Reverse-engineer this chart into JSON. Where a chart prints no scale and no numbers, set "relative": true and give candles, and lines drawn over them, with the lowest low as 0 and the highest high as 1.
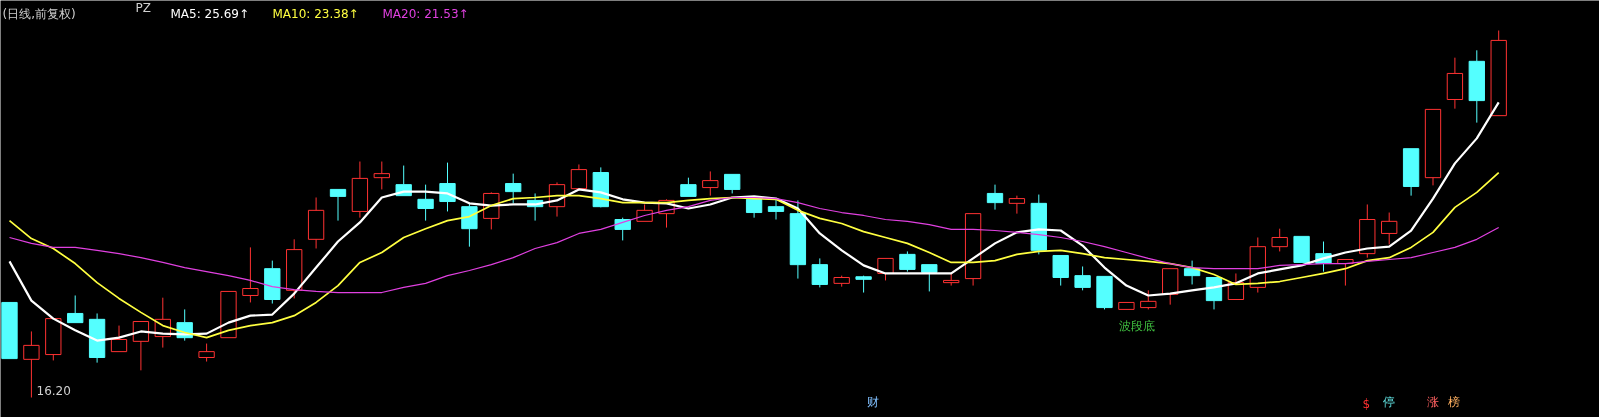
{
  "chart_data": {
    "type": "candlestick",
    "title": "(日线,前复权)",
    "relative": true,
    "annotations": [
      "PZ",
      "16.20",
      "波段底",
      "财",
      "$",
      "停",
      "涨",
      "榜"
    ],
    "categories": [
      null,
      null,
      null,
      null,
      null,
      null,
      null,
      null,
      null,
      null,
      null,
      null,
      null,
      null,
      null,
      null,
      null,
      null,
      null,
      null,
      null,
      null,
      null,
      null,
      null,
      null,
      null,
      null,
      null,
      null,
      null,
      null,
      null,
      null,
      null,
      null,
      null,
      null,
      null,
      null,
      null,
      null,
      null,
      null,
      null,
      null,
      null,
      null,
      null,
      null,
      null,
      null,
      null,
      null,
      null,
      null,
      null,
      null,
      null,
      null,
      null,
      null,
      null,
      null,
      null,
      null,
      null,
      null,
      null
    ],
    "ohlc": [
      [
        0.259,
        0.259,
        0.106,
        0.106
      ],
      [
        0.104,
        0.18,
        0,
        0.142
      ],
      [
        0.117,
        0.215,
        0.101,
        0.215
      ],
      [
        0.229,
        0.278,
        0.204,
        0.204
      ],
      [
        0.213,
        0.229,
        0.095,
        0.109
      ],
      [
        0.125,
        0.196,
        0.125,
        0.158
      ],
      [
        0.153,
        0.207,
        0.074,
        0.207
      ],
      [
        0.166,
        0.272,
        0.136,
        0.213
      ],
      [
        0.204,
        0.24,
        0.155,
        0.163
      ],
      [
        0.109,
        0.147,
        0.098,
        0.125
      ],
      [
        0.163,
        0.289,
        0.163,
        0.289
      ],
      [
        0.278,
        0.409,
        0.259,
        0.297
      ],
      [
        0.351,
        0.373,
        0.256,
        0.267
      ],
      [
        0.292,
        0.431,
        0.27,
        0.403
      ],
      [
        0.431,
        0.545,
        0.406,
        0.51
      ],
      [
        0.567,
        0.567,
        0.482,
        0.548
      ],
      [
        0.507,
        0.643,
        0.49,
        0.597
      ],
      [
        0.599,
        0.643,
        0.567,
        0.61
      ],
      [
        0.58,
        0.632,
        0.55,
        0.55
      ],
      [
        0.54,
        0.58,
        0.482,
        0.515
      ],
      [
        0.583,
        0.64,
        0.507,
        0.534
      ],
      [
        0.52,
        0.531,
        0.411,
        0.46
      ],
      [
        0.488,
        0.559,
        0.458,
        0.556
      ],
      [
        0.583,
        0.61,
        0.529,
        0.561
      ],
      [
        0.537,
        0.556,
        0.482,
        0.52
      ],
      [
        0.52,
        0.586,
        0.493,
        0.58
      ],
      [
        0.569,
        0.635,
        0.569,
        0.621
      ],
      [
        0.613,
        0.627,
        0.518,
        0.52
      ],
      [
        0.485,
        0.49,
        0.428,
        0.458
      ],
      [
        0.48,
        0.526,
        0.48,
        0.51
      ],
      [
        0.501,
        0.54,
        0.463,
        0.537
      ],
      [
        0.58,
        0.599,
        0.548,
        0.548
      ],
      [
        0.572,
        0.616,
        0.55,
        0.591
      ],
      [
        0.608,
        0.608,
        0.556,
        0.567
      ],
      [
        0.54,
        0.54,
        0.49,
        0.504
      ],
      [
        0.52,
        0.54,
        0.485,
        0.507
      ],
      [
        0.501,
        0.537,
        0.324,
        0.362
      ],
      [
        0.362,
        0.379,
        0.3,
        0.308
      ],
      [
        0.311,
        0.332,
        0.302,
        0.327
      ],
      [
        0.327,
        0.332,
        0.286,
        0.324
      ],
      [
        0.338,
        0.379,
        0.319,
        0.379
      ],
      [
        0.39,
        0.398,
        0.343,
        0.349
      ],
      [
        0.362,
        0.362,
        0.289,
        0.341
      ],
      [
        0.313,
        0.338,
        0.305,
        0.319
      ],
      [
        0.324,
        0.501,
        0.305,
        0.501
      ],
      [
        0.556,
        0.58,
        0.512,
        0.531
      ],
      [
        0.529,
        0.55,
        0.501,
        0.542
      ],
      [
        0.529,
        0.553,
        0.39,
        0.401
      ],
      [
        0.387,
        0.387,
        0.305,
        0.327
      ],
      [
        0.332,
        0.357,
        0.292,
        0.3
      ],
      [
        0.33,
        0.33,
        0.24,
        0.245
      ],
      [
        0.24,
        0.259,
        0.24,
        0.259
      ],
      [
        0.245,
        0.292,
        0.24,
        0.262
      ],
      [
        0.281,
        0.351,
        0.253,
        0.351
      ],
      [
        0.351,
        0.373,
        0.308,
        0.332
      ],
      [
        0.327,
        0.327,
        0.24,
        0.264
      ],
      [
        0.267,
        0.338,
        0.267,
        0.313
      ],
      [
        0.3,
        0.436,
        0.286,
        0.411
      ],
      [
        0.411,
        0.46,
        0.398,
        0.436
      ],
      [
        0.439,
        0.439,
        0.368,
        0.368
      ],
      [
        0.392,
        0.425,
        0.343,
        0.365
      ],
      [
        0.365,
        0.376,
        0.305,
        0.376
      ],
      [
        0.392,
        0.526,
        0.381,
        0.485
      ],
      [
        0.447,
        0.504,
        0.417,
        0.48
      ],
      [
        0.678,
        0.678,
        0.55,
        0.575
      ],
      [
        0.599,
        0.785,
        0.578,
        0.785
      ],
      [
        0.812,
        0.926,
        0.787,
        0.883
      ],
      [
        0.916,
        0.946,
        0.749,
        0.809
      ],
      [
        0.768,
        1,
        0.768,
        0.973
      ]
    ],
    "colors": [
      "#54ffff",
      "#ff3232",
      "#ff3232",
      "#54ffff",
      "#54ffff",
      "#ff3232",
      "#ff3232",
      "#ff3232",
      "#54ffff",
      "#ff3232",
      "#ff3232",
      "#ff3232",
      "#54ffff",
      "#ff3232",
      "#ff3232",
      "#54ffff",
      "#ff3232",
      "#ff3232",
      "#54ffff",
      "#54ffff",
      "#54ffff",
      "#54ffff",
      "#ff3232",
      "#54ffff",
      "#54ffff",
      "#ff3232",
      "#ff3232",
      "#54ffff",
      "#54ffff",
      "#ff3232",
      "#ff3232",
      "#54ffff",
      "#ff3232",
      "#54ffff",
      "#54ffff",
      "#54ffff",
      "#54ffff",
      "#54ffff",
      "#ff3232",
      "#54ffff",
      "#ff3232",
      "#54ffff",
      "#54ffff",
      "#ff3232",
      "#ff3232",
      "#54ffff",
      "#ff3232",
      "#54ffff",
      "#54ffff",
      "#54ffff",
      "#54ffff",
      "#ff3232",
      "#ff3232",
      "#ff3232",
      "#54ffff",
      "#54ffff",
      "#ff3232",
      "#ff3232",
      "#ff3232",
      "#54ffff",
      "#54ffff",
      "#ff3232",
      "#ff3232",
      "#ff3232",
      "#54ffff",
      "#ff3232",
      "#ff3232",
      "#54ffff",
      "#ff3232"
    ],
    "series": [
      {
        "type": "line",
        "name": "MA5: 25.69↑",
        "color": "#ffffff",
        "values": [
          0.371,
          0.264,
          0.215,
          0.183,
          0.155,
          0.163,
          0.18,
          0.174,
          0.172,
          0.174,
          0.204,
          0.223,
          0.226,
          0.283,
          0.354,
          0.425,
          0.477,
          0.545,
          0.561,
          0.561,
          0.556,
          0.529,
          0.523,
          0.526,
          0.526,
          0.537,
          0.567,
          0.559,
          0.54,
          0.531,
          0.529,
          0.515,
          0.526,
          0.545,
          0.548,
          0.542,
          0.515,
          0.447,
          0.401,
          0.36,
          0.338,
          0.338,
          0.338,
          0.338,
          0.379,
          0.42,
          0.45,
          0.458,
          0.455,
          0.414,
          0.354,
          0.305,
          0.278,
          0.283,
          0.292,
          0.3,
          0.311,
          0.338,
          0.349,
          0.36,
          0.379,
          0.395,
          0.406,
          0.411,
          0.455,
          0.542,
          0.638,
          0.706,
          0.804
        ]
      },
      {
        "type": "line",
        "name": "MA10: 23.38↑",
        "color": "#ffff40",
        "values": [
          0.482,
          0.433,
          0.406,
          0.365,
          0.313,
          0.27,
          0.232,
          0.196,
          0.177,
          0.163,
          0.183,
          0.196,
          0.204,
          0.223,
          0.259,
          0.305,
          0.368,
          0.395,
          0.436,
          0.46,
          0.482,
          0.493,
          0.523,
          0.542,
          0.545,
          0.55,
          0.55,
          0.542,
          0.531,
          0.531,
          0.531,
          0.537,
          0.542,
          0.545,
          0.542,
          0.54,
          0.51,
          0.488,
          0.474,
          0.452,
          0.436,
          0.42,
          0.395,
          0.368,
          0.368,
          0.373,
          0.39,
          0.398,
          0.401,
          0.392,
          0.381,
          0.376,
          0.371,
          0.365,
          0.354,
          0.335,
          0.308,
          0.311,
          0.316,
          0.327,
          0.338,
          0.351,
          0.373,
          0.381,
          0.409,
          0.45,
          0.518,
          0.559,
          0.613
        ]
      },
      {
        "type": "line",
        "name": "MA20: 21.53↑",
        "color": "#e040e0",
        "values": [
          0.436,
          0.42,
          0.409,
          0.409,
          0.401,
          0.392,
          0.381,
          0.368,
          0.354,
          0.343,
          0.332,
          0.319,
          0.302,
          0.294,
          0.289,
          0.286,
          0.286,
          0.286,
          0.3,
          0.311,
          0.332,
          0.346,
          0.362,
          0.381,
          0.406,
          0.422,
          0.447,
          0.458,
          0.477,
          0.496,
          0.51,
          0.52,
          0.537,
          0.545,
          0.545,
          0.542,
          0.531,
          0.515,
          0.504,
          0.496,
          0.485,
          0.48,
          0.471,
          0.458,
          0.458,
          0.455,
          0.45,
          0.444,
          0.436,
          0.425,
          0.411,
          0.395,
          0.379,
          0.365,
          0.354,
          0.351,
          0.351,
          0.351,
          0.36,
          0.362,
          0.365,
          0.365,
          0.371,
          0.376,
          0.381,
          0.395,
          0.409,
          0.431,
          0.463
        ]
      }
    ]
  }
}
